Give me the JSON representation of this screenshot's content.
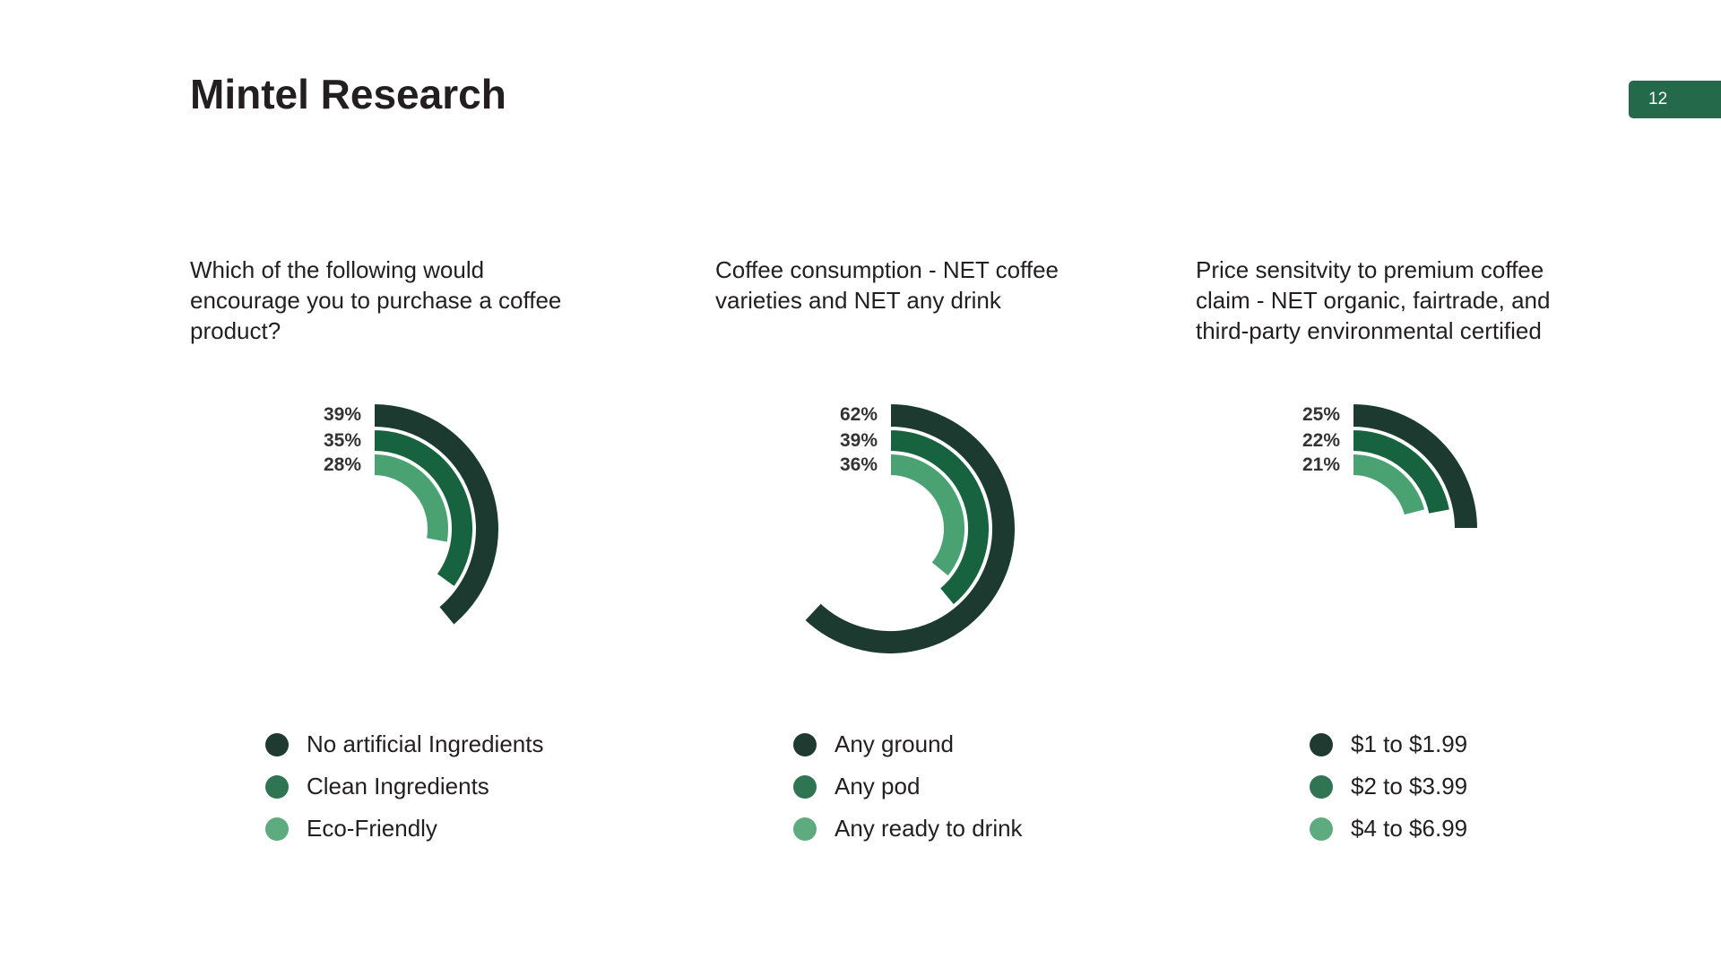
{
  "slide": {
    "title": "Mintel Research",
    "page_number": "12",
    "badge_color": "#24694a"
  },
  "colors": {
    "dark": "#1c3a30",
    "medium": "#17623f",
    "light": "#4aa273",
    "legend_dark": "#1f3a31",
    "legend_medium": "#2f7553",
    "legend_light": "#5eab80"
  },
  "panels": [
    {
      "question": "Which of the following would encourage you to purchase a coffee product?",
      "legend": [
        {
          "label": "No artificial Ingredients",
          "color_key": "legend_dark"
        },
        {
          "label": "Clean Ingredients",
          "color_key": "legend_medium"
        },
        {
          "label": "Eco-Friendly",
          "color_key": "legend_light"
        }
      ]
    },
    {
      "question": "Coffee consumption - NET coffee varieties and NET any drink",
      "legend": [
        {
          "label": "Any ground",
          "color_key": "legend_dark"
        },
        {
          "label": "Any pod",
          "color_key": "legend_medium"
        },
        {
          "label": "Any ready to drink",
          "color_key": "legend_light"
        }
      ]
    },
    {
      "question": "Price sensitvity to premium coffee claim - NET organic, fairtrade, and third-party environmental certified",
      "legend": [
        {
          "label": "$1 to $1.99",
          "color_key": "legend_dark"
        },
        {
          "label": "$2 to $3.99",
          "color_key": "legend_medium"
        },
        {
          "label": "$4 to $6.99",
          "color_key": "legend_light"
        }
      ]
    }
  ],
  "chart_data": [
    {
      "type": "radial-bar",
      "title": "Which of the following would encourage you to purchase a coffee product?",
      "unit": "%",
      "full_circle_value": 100,
      "series": [
        {
          "name": "No artificial Ingredients",
          "value": 39,
          "label": "39%",
          "color_key": "dark"
        },
        {
          "name": "Clean Ingredients",
          "value": 35,
          "label": "35%",
          "color_key": "medium"
        },
        {
          "name": "Eco-Friendly",
          "value": 28,
          "label": "28%",
          "color_key": "light"
        }
      ]
    },
    {
      "type": "radial-bar",
      "title": "Coffee consumption - NET coffee varieties and NET any drink",
      "unit": "%",
      "full_circle_value": 100,
      "series": [
        {
          "name": "Any ground",
          "value": 62,
          "label": "62%",
          "color_key": "dark"
        },
        {
          "name": "Any pod",
          "value": 39,
          "label": "39%",
          "color_key": "medium"
        },
        {
          "name": "Any ready to drink",
          "value": 36,
          "label": "36%",
          "color_key": "light"
        }
      ]
    },
    {
      "type": "radial-bar",
      "title": "Price sensitvity to premium coffee claim - NET organic, fairtrade, and third-party environmental certified",
      "unit": "%",
      "full_circle_value": 100,
      "series": [
        {
          "name": "$1 to $1.99",
          "value": 25,
          "label": "25%",
          "color_key": "dark"
        },
        {
          "name": "$2 to $3.99",
          "value": 22,
          "label": "22%",
          "color_key": "medium"
        },
        {
          "name": "$4 to $6.99",
          "value": 21,
          "label": "21%",
          "color_key": "light"
        }
      ]
    }
  ]
}
